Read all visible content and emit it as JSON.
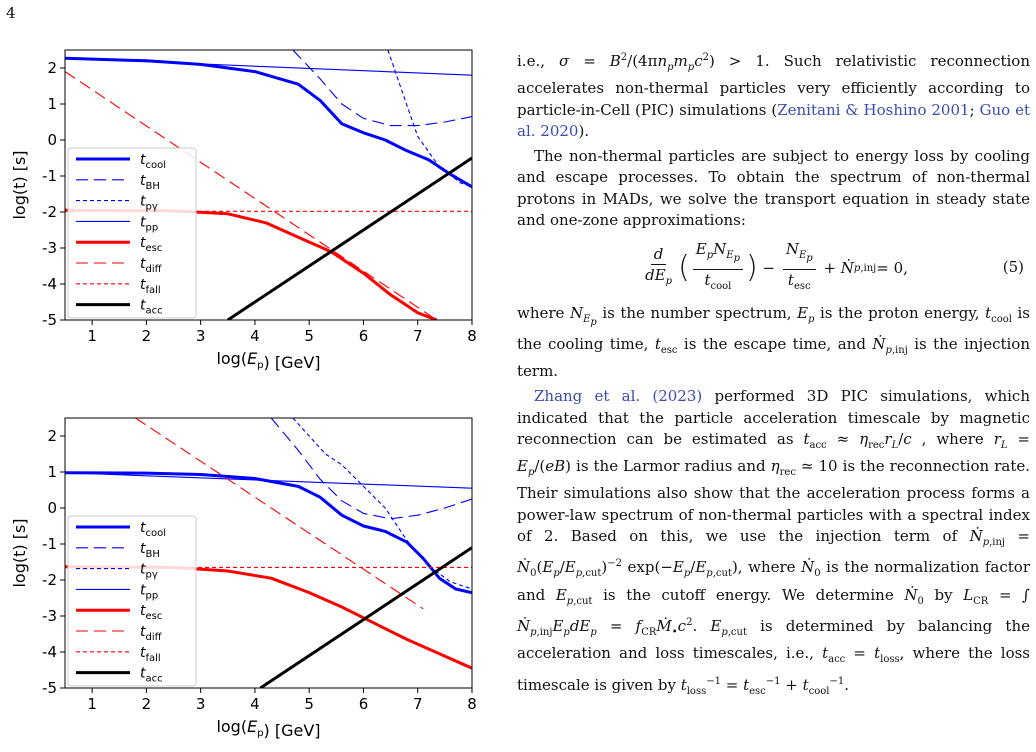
{
  "page_number": "4",
  "figures": [
    {
      "id": "fig1",
      "xlabel": "log(E_p) [GeV]",
      "ylabel": "log(t) [s]",
      "xlim": [
        0.5,
        8
      ],
      "ylim": [
        -5,
        2.5
      ],
      "x_ticks": [
        "1",
        "2",
        "3",
        "4",
        "5",
        "6",
        "7",
        "8"
      ],
      "y_ticks": [
        "2",
        "1",
        "0",
        "-1",
        "-2",
        "-3",
        "-4",
        "-5"
      ],
      "legend": [
        "t_cool",
        "t_BH",
        "t_pγ",
        "t_pp",
        "t_esc",
        "t_diff",
        "t_fall",
        "t_acc"
      ],
      "colors": {
        "blue": "#0000ff",
        "red": "#ff0000",
        "black": "#000000"
      }
    },
    {
      "id": "fig2",
      "xlabel": "log(E_p) [GeV]",
      "ylabel": "log(t) [s]",
      "xlim": [
        0.5,
        8
      ],
      "ylim": [
        -5,
        2.5
      ],
      "x_ticks": [
        "1",
        "2",
        "3",
        "4",
        "5",
        "6",
        "7",
        "8"
      ],
      "y_ticks": [
        "2",
        "1",
        "0",
        "-1",
        "-2",
        "-3",
        "-4",
        "-5"
      ],
      "legend": [
        "t_cool",
        "t_BH",
        "t_pγ",
        "t_pp",
        "t_esc",
        "t_diff",
        "t_fall",
        "t_acc"
      ],
      "colors": {
        "blue": "#0000ff",
        "red": "#ff0000",
        "black": "#000000"
      }
    }
  ],
  "chart_data": [
    {
      "type": "line",
      "xlabel": "log(E_p) [GeV]",
      "ylabel": "log(t) [s]",
      "xlim": [
        0.5,
        8
      ],
      "ylim": [
        -5,
        2.5
      ],
      "grid": false,
      "legend_position": "lower-left",
      "series": [
        {
          "name": "t_cool",
          "style": "solid-thick",
          "color": "#0000ff",
          "x": [
            0.5,
            2,
            3,
            4,
            4.8,
            5.2,
            5.6,
            6.0,
            6.4,
            6.8,
            7.2,
            7.6,
            8.0
          ],
          "y": [
            2.27,
            2.2,
            2.1,
            1.9,
            1.55,
            1.1,
            0.45,
            0.2,
            0.0,
            -0.3,
            -0.55,
            -0.95,
            -1.3
          ]
        },
        {
          "name": "t_BH",
          "style": "dash-long",
          "color": "#0000ff",
          "x": [
            4.7,
            5.2,
            5.6,
            6.0,
            6.5,
            7.0,
            7.5,
            8.0
          ],
          "y": [
            2.5,
            1.7,
            1.0,
            0.6,
            0.4,
            0.4,
            0.5,
            0.65
          ]
        },
        {
          "name": "t_pγ",
          "style": "dash-short",
          "color": "#0000ff",
          "x": [
            6.45,
            6.7,
            7.0,
            7.4,
            7.8,
            8.0
          ],
          "y": [
            2.5,
            1.4,
            0.1,
            -0.75,
            -1.2,
            -1.3
          ]
        },
        {
          "name": "t_pp",
          "style": "solid-thin",
          "color": "#0000ff",
          "x": [
            0.5,
            8.0
          ],
          "y": [
            2.27,
            1.8
          ]
        },
        {
          "name": "t_esc",
          "style": "solid-thick",
          "color": "#ff0000",
          "x": [
            0.5,
            2.5,
            3.5,
            4.2,
            4.8,
            5.4,
            6.0,
            6.5,
            7.0,
            7.35
          ],
          "y": [
            -1.95,
            -1.97,
            -2.05,
            -2.3,
            -2.7,
            -3.1,
            -3.7,
            -4.3,
            -4.8,
            -5.0
          ]
        },
        {
          "name": "t_diff",
          "style": "dash-long",
          "color": "#ff0000",
          "x": [
            0.5,
            7.35
          ],
          "y": [
            1.9,
            -5.0
          ]
        },
        {
          "name": "t_fall",
          "style": "dash-short",
          "color": "#ff0000",
          "x": [
            0.5,
            8.0
          ],
          "y": [
            -1.98,
            -1.98
          ]
        },
        {
          "name": "t_acc",
          "style": "solid-thick",
          "color": "#000000",
          "x": [
            3.5,
            8.0
          ],
          "y": [
            -5.0,
            -0.5
          ]
        }
      ]
    },
    {
      "type": "line",
      "xlabel": "log(E_p) [GeV]",
      "ylabel": "log(t) [s]",
      "xlim": [
        0.5,
        8
      ],
      "ylim": [
        -5,
        2.5
      ],
      "grid": false,
      "legend_position": "lower-left",
      "series": [
        {
          "name": "t_cool",
          "style": "solid-thick",
          "color": "#0000ff",
          "x": [
            0.5,
            2,
            3,
            4,
            4.8,
            5.2,
            5.6,
            6.0,
            6.4,
            6.8,
            7.1,
            7.4,
            7.7,
            8.0
          ],
          "y": [
            0.98,
            0.97,
            0.93,
            0.82,
            0.6,
            0.3,
            -0.2,
            -0.5,
            -0.65,
            -0.95,
            -1.4,
            -1.95,
            -2.25,
            -2.35
          ]
        },
        {
          "name": "t_BH",
          "style": "dash-long",
          "color": "#0000ff",
          "x": [
            4.3,
            4.8,
            5.2,
            5.6,
            6.0,
            6.5,
            7.0,
            7.5,
            8.0
          ],
          "y": [
            2.5,
            1.6,
            0.8,
            0.2,
            -0.15,
            -0.3,
            -0.2,
            0.0,
            0.25
          ]
        },
        {
          "name": "t_pγ",
          "style": "dash-short",
          "color": "#0000ff",
          "x": [
            4.7,
            5.0,
            5.3,
            5.6,
            6.0,
            6.4,
            6.8,
            7.2,
            7.6,
            8.0
          ],
          "y": [
            2.5,
            2.0,
            1.5,
            1.2,
            0.6,
            0.0,
            -0.9,
            -1.6,
            -2.05,
            -2.25
          ]
        },
        {
          "name": "t_pp",
          "style": "solid-thin",
          "color": "#0000ff",
          "x": [
            0.5,
            8.0
          ],
          "y": [
            0.98,
            0.55
          ]
        },
        {
          "name": "t_esc",
          "style": "solid-thick",
          "color": "#ff0000",
          "x": [
            0.5,
            2.5,
            3.5,
            4.3,
            5.0,
            5.6,
            6.2,
            6.8,
            7.4,
            8.0
          ],
          "y": [
            -1.63,
            -1.65,
            -1.75,
            -1.95,
            -2.35,
            -2.75,
            -3.2,
            -3.65,
            -4.05,
            -4.45
          ]
        },
        {
          "name": "t_diff",
          "style": "dash-long",
          "color": "#ff0000",
          "x": [
            1.8,
            7.1
          ],
          "y": [
            2.5,
            -2.8
          ]
        },
        {
          "name": "t_fall",
          "style": "dash-short",
          "color": "#ff0000",
          "x": [
            0.5,
            8.0
          ],
          "y": [
            -1.65,
            -1.65
          ]
        },
        {
          "name": "t_acc",
          "style": "solid-thick",
          "color": "#000000",
          "x": [
            4.1,
            8.0
          ],
          "y": [
            -5.0,
            -1.1
          ]
        }
      ]
    }
  ]
}
